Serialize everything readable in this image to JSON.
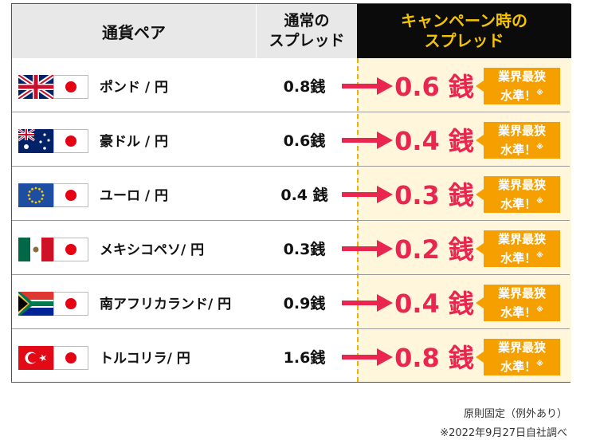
{
  "header": {
    "pair": "通貨ペア",
    "normal_line1": "通常の",
    "normal_line2": "スプレッド",
    "campaign_line1": "キャンペーン時の",
    "campaign_line2": "スプレッド"
  },
  "rows": [
    {
      "flag": "uk-flag-icon",
      "pair": "ポンド / 円",
      "normal": "0.8銭",
      "campaign": "0.6 銭"
    },
    {
      "flag": "australia-flag-icon",
      "pair": "豪ドル / 円",
      "normal": "0.6銭",
      "campaign": "0.4 銭"
    },
    {
      "flag": "eu-flag-icon",
      "pair": "ユーロ / 円",
      "normal": "0.4 銭",
      "campaign": "0.3 銭"
    },
    {
      "flag": "mexico-flag-icon",
      "pair": "メキシコペソ/ 円",
      "normal": "0.3銭",
      "campaign": "0.2 銭"
    },
    {
      "flag": "south-africa-flag-icon",
      "pair": "南アフリカランド/ 円",
      "normal": "0.9銭",
      "campaign": "0.4 銭"
    },
    {
      "flag": "turkey-flag-icon",
      "pair": "トルコリラ/ 円",
      "normal": "1.6銭",
      "campaign": "0.8 銭"
    }
  ],
  "badge": {
    "line1": "業界最狭",
    "line2": "水準！",
    "mark": "※"
  },
  "footer": {
    "note1": "原則固定（例外あり）",
    "note2": "※2022年9月27日自社調べ"
  },
  "colors": {
    "campaign_value": "#e8264f",
    "arrow": "#e8264f",
    "badge": "#f5a000",
    "campaign_header_bg": "#0b0b0b",
    "campaign_header_text": "#f5c400",
    "campaign_column_bg": "#fff6dc"
  }
}
